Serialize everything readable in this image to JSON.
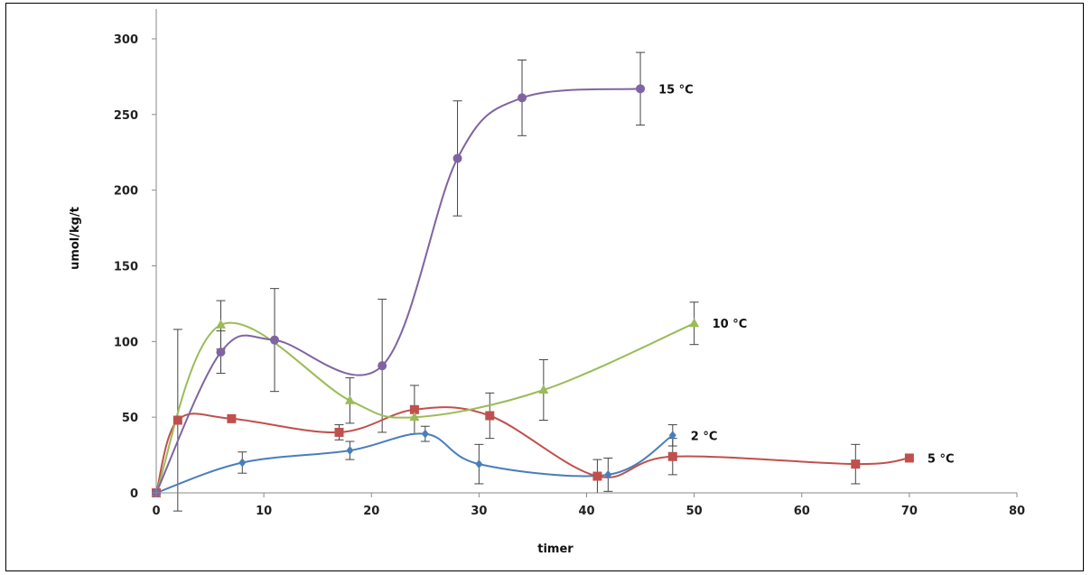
{
  "chart_data": {
    "type": "line",
    "xlabel": "timer",
    "ylabel": "umol/kg/t",
    "xlim": [
      0,
      80
    ],
    "ylim": [
      0,
      300
    ],
    "xticks": [
      0,
      10,
      20,
      30,
      40,
      50,
      60,
      70,
      80
    ],
    "yticks": [
      0,
      50,
      100,
      150,
      200,
      250,
      300
    ],
    "grid": false,
    "legend": "none",
    "series": [
      {
        "name": "2 °C",
        "color": "#4a7ebb",
        "marker": "diamond",
        "points": [
          {
            "x": 0,
            "y": 0
          },
          {
            "x": 8,
            "y": 20,
            "err": 7
          },
          {
            "x": 18,
            "y": 28,
            "err": 6
          },
          {
            "x": 25,
            "y": 39,
            "err": 5
          },
          {
            "x": 30,
            "y": 19,
            "err": 13
          },
          {
            "x": 42,
            "y": 12,
            "err": 11
          },
          {
            "x": 48,
            "y": 38,
            "err": 7
          }
        ]
      },
      {
        "name": "5 °C",
        "color": "#c0504d",
        "marker": "square",
        "points": [
          {
            "x": 0,
            "y": 0
          },
          {
            "x": 2,
            "y": 48,
            "err": 60
          },
          {
            "x": 7,
            "y": 49
          },
          {
            "x": 17,
            "y": 40,
            "err": 5
          },
          {
            "x": 24,
            "y": 55,
            "err": 16
          },
          {
            "x": 31,
            "y": 51,
            "err": 15
          },
          {
            "x": 41,
            "y": 11,
            "err": 11
          },
          {
            "x": 48,
            "y": 24,
            "err": 12
          },
          {
            "x": 65,
            "y": 19,
            "err": 13
          },
          {
            "x": 70,
            "y": 23
          }
        ]
      },
      {
        "name": "10 °C",
        "color": "#9bbb59",
        "marker": "triangle",
        "points": [
          {
            "x": 0,
            "y": 0
          },
          {
            "x": 6,
            "y": 111,
            "err": 16
          },
          {
            "x": 18,
            "y": 61,
            "err": 15
          },
          {
            "x": 24,
            "y": 50
          },
          {
            "x": 36,
            "y": 68,
            "err": 20
          },
          {
            "x": 50,
            "y": 112,
            "err": 14
          }
        ]
      },
      {
        "name": "15 °C",
        "color": "#8064a2",
        "marker": "circle",
        "points": [
          {
            "x": 0,
            "y": 0
          },
          {
            "x": 6,
            "y": 93,
            "err": 14
          },
          {
            "x": 11,
            "y": 101,
            "err": 34
          },
          {
            "x": 21,
            "y": 84,
            "err": 44
          },
          {
            "x": 28,
            "y": 221,
            "err": 38
          },
          {
            "x": 34,
            "y": 261,
            "err": 25
          },
          {
            "x": 45,
            "y": 267,
            "err": 24
          }
        ]
      }
    ]
  }
}
